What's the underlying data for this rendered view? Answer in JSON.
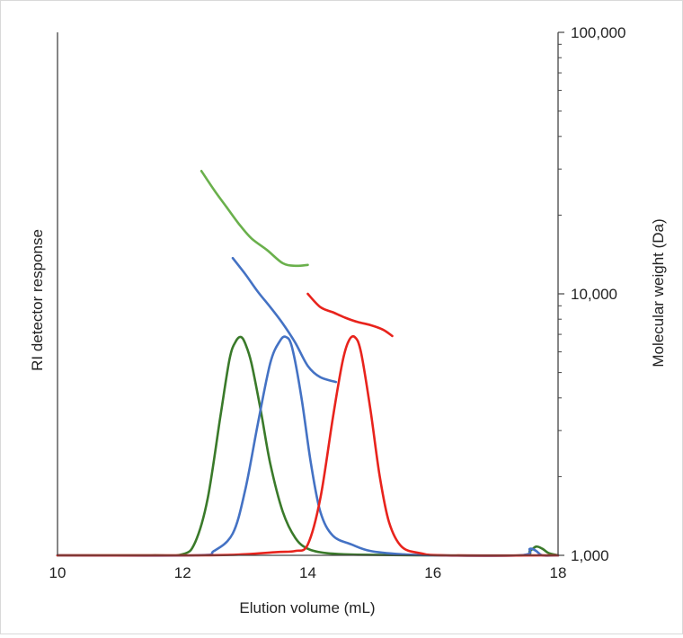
{
  "chart_data": {
    "type": "line",
    "title": "",
    "xlabel": "Elution volume (mL)",
    "ylabel_left": "RI detector response",
    "ylabel_right": "Molecular weight (Da)",
    "xlim": [
      10,
      18
    ],
    "x_ticks": [
      10,
      12,
      14,
      16,
      18
    ],
    "x_tick_labels": [
      "10",
      "12",
      "14",
      "16",
      "18"
    ],
    "ri_ylim": [
      0,
      1
    ],
    "mw_scale": "log",
    "mw_ylim": [
      1000,
      100000
    ],
    "mw_ticks": [
      1000,
      10000,
      100000
    ],
    "mw_tick_labels": [
      "1,000",
      "10,000",
      "100,000"
    ],
    "grid": false,
    "legend": "none",
    "ri_traces": [
      {
        "color": "#3a7a2a",
        "x": [
          10.0,
          11.5,
          12.0,
          12.2,
          12.4,
          12.6,
          12.75,
          12.85,
          12.93,
          13.0,
          13.1,
          13.25,
          13.4,
          13.6,
          13.8,
          14.0,
          14.3,
          14.8,
          16.0,
          17.4,
          17.55,
          17.65,
          17.75,
          17.85,
          18.0
        ],
        "y": [
          0.0,
          0.0,
          0.005,
          0.06,
          0.26,
          0.63,
          0.9,
          0.98,
          1.0,
          0.97,
          0.88,
          0.66,
          0.42,
          0.2,
          0.08,
          0.03,
          0.01,
          0.003,
          0.0,
          0.0,
          0.02,
          0.04,
          0.03,
          0.01,
          0.0
        ]
      },
      {
        "color": "#4472c4",
        "x": [
          10.0,
          12.2,
          12.5,
          12.8,
          13.0,
          13.2,
          13.4,
          13.55,
          13.65,
          13.75,
          13.9,
          14.05,
          14.2,
          14.4,
          14.7,
          15.0,
          15.5,
          16.0,
          17.4,
          17.55,
          17.65,
          17.75,
          18.0
        ],
        "y": [
          0.0,
          0.0,
          0.02,
          0.1,
          0.3,
          0.6,
          0.88,
          0.98,
          1.0,
          0.95,
          0.72,
          0.42,
          0.2,
          0.09,
          0.05,
          0.02,
          0.005,
          0.0,
          0.0,
          0.03,
          0.02,
          0.0,
          0.0
        ]
      },
      {
        "color": "#e8231c",
        "x": [
          10.0,
          12.3,
          13.0,
          13.5,
          13.8,
          14.0,
          14.2,
          14.4,
          14.55,
          14.65,
          14.75,
          14.85,
          15.0,
          15.15,
          15.3,
          15.5,
          15.8,
          16.2,
          18.0
        ],
        "y": [
          0.0,
          0.0,
          0.005,
          0.015,
          0.02,
          0.05,
          0.26,
          0.63,
          0.88,
          0.98,
          1.0,
          0.93,
          0.67,
          0.36,
          0.15,
          0.04,
          0.01,
          0.0,
          0.0
        ]
      }
    ],
    "mw_traces": [
      {
        "color": "#6ab04c",
        "x": [
          12.3,
          12.5,
          12.7,
          12.9,
          13.1,
          13.35,
          13.6,
          13.8,
          14.0
        ],
        "y": [
          29500,
          25000,
          21500,
          18500,
          16300,
          14700,
          13100,
          12800,
          12900
        ]
      },
      {
        "color": "#4472c4",
        "x": [
          12.8,
          13.0,
          13.2,
          13.4,
          13.6,
          13.8,
          14.0,
          14.2,
          14.45
        ],
        "y": [
          13700,
          11900,
          10200,
          8900,
          7700,
          6500,
          5300,
          4800,
          4600
        ]
      },
      {
        "color": "#e8231c",
        "x": [
          14.0,
          14.2,
          14.4,
          14.6,
          14.8,
          15.0,
          15.2,
          15.35
        ],
        "y": [
          10000,
          8900,
          8500,
          8100,
          7800,
          7600,
          7300,
          6900
        ]
      }
    ]
  }
}
